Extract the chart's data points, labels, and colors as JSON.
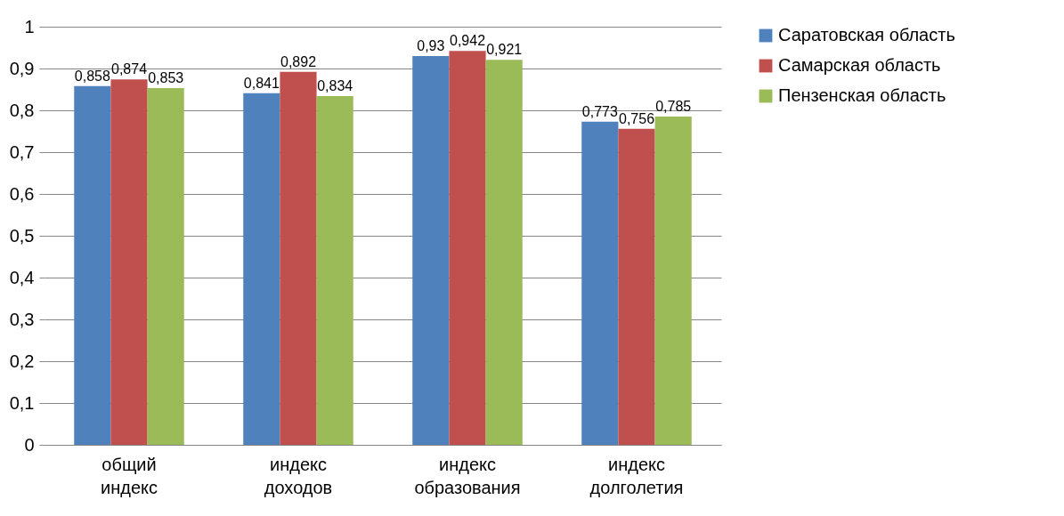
{
  "chart_data": {
    "type": "bar",
    "categories": [
      "общий индекс",
      "индекс доходов",
      "индекс образования",
      "индекс долголетия"
    ],
    "series": [
      {
        "name": "Саратовская область",
        "color": "#4f81bd",
        "values": [
          0.858,
          0.841,
          0.93,
          0.773
        ],
        "value_labels": [
          "0,858",
          "0,841",
          "0,93",
          "0,773"
        ]
      },
      {
        "name": "Самарская область",
        "color": "#c0504d",
        "values": [
          0.874,
          0.892,
          0.942,
          0.756
        ],
        "value_labels": [
          "0,874",
          "0,892",
          "0,942",
          "0,756"
        ]
      },
      {
        "name": "Пензенская область",
        "color": "#9bbb59",
        "values": [
          0.853,
          0.834,
          0.921,
          0.785
        ],
        "value_labels": [
          "0,853",
          "0,834",
          "0,921",
          "0,785"
        ]
      }
    ],
    "ylim": [
      0,
      1
    ],
    "yticks": [
      0,
      {
        "value": 0.1,
        "label": "0,1"
      },
      {
        "value": 0.2,
        "label": "0,2"
      },
      {
        "value": 0.3,
        "label": "0,3"
      },
      {
        "value": 0.4,
        "label": "0,4"
      },
      {
        "value": 0.5,
        "label": "0,5"
      },
      {
        "value": 0.6,
        "label": "0,6"
      },
      {
        "value": 0.7,
        "label": "0,7"
      },
      {
        "value": 0.8,
        "label": "0,8"
      },
      {
        "value": 0.9,
        "label": "0,9"
      },
      1
    ],
    "grid": "y",
    "legend": "right"
  }
}
